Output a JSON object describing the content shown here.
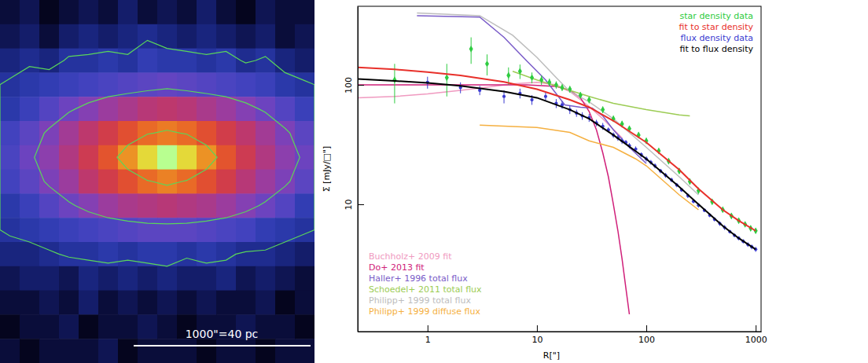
{
  "chart_data": [
    {
      "type": "heatmap",
      "tick_labels": false,
      "cells": [
        [
          1.0,
          1.1,
          0.9,
          1.0,
          1.1,
          1.0,
          1.2,
          1.0,
          1.1,
          1.0,
          1.2,
          1.0,
          0.9,
          1.1,
          1.0,
          1.0
        ],
        [
          1.1,
          1.2,
          1.0,
          1.2,
          1.3,
          1.2,
          1.3,
          1.4,
          1.3,
          1.2,
          1.3,
          1.2,
          1.1,
          1.2,
          1.0,
          1.1
        ],
        [
          1.3,
          1.4,
          1.3,
          1.5,
          1.5,
          1.6,
          1.5,
          1.7,
          1.6,
          1.6,
          1.5,
          1.6,
          1.4,
          1.5,
          1.3,
          1.2
        ],
        [
          1.5,
          1.6,
          1.7,
          1.8,
          1.9,
          2.0,
          2.1,
          2.2,
          2.3,
          2.2,
          2.1,
          2.0,
          1.9,
          1.8,
          1.6,
          1.5
        ],
        [
          1.6,
          1.8,
          2.1,
          2.4,
          2.7,
          3.0,
          3.2,
          3.4,
          3.5,
          3.4,
          3.2,
          3.0,
          2.7,
          2.4,
          2.1,
          1.8
        ],
        [
          1.9,
          2.2,
          2.6,
          3.1,
          3.5,
          3.9,
          4.4,
          4.9,
          5.2,
          4.9,
          4.4,
          3.9,
          3.5,
          3.1,
          2.6,
          2.2
        ],
        [
          2.0,
          2.4,
          2.8,
          3.3,
          3.8,
          4.5,
          5.6,
          7.2,
          10.0,
          7.2,
          5.6,
          4.5,
          3.8,
          3.3,
          2.8,
          2.4
        ],
        [
          1.9,
          2.2,
          2.6,
          3.0,
          3.5,
          3.9,
          4.4,
          4.9,
          5.3,
          4.9,
          4.4,
          3.9,
          3.4,
          3.0,
          2.6,
          2.2
        ],
        [
          1.6,
          1.8,
          2.1,
          2.4,
          2.7,
          3.0,
          3.2,
          3.3,
          3.4,
          3.3,
          3.2,
          3.0,
          2.7,
          2.4,
          2.1,
          1.7
        ],
        [
          1.5,
          1.6,
          1.7,
          1.8,
          1.9,
          2.0,
          2.1,
          2.2,
          2.2,
          2.2,
          2.1,
          2.0,
          1.9,
          1.7,
          1.6,
          1.5
        ],
        [
          1.3,
          1.3,
          1.4,
          1.5,
          1.5,
          1.6,
          1.5,
          1.6,
          1.6,
          1.5,
          1.6,
          1.5,
          1.4,
          1.4,
          1.3,
          1.2
        ],
        [
          1.1,
          1.2,
          1.2,
          1.1,
          1.3,
          1.2,
          1.3,
          1.2,
          1.3,
          1.2,
          1.2,
          1.3,
          1.1,
          1.2,
          1.1,
          1.0
        ],
        [
          1.0,
          1.0,
          1.1,
          1.0,
          1.2,
          1.0,
          1.1,
          1.0,
          1.1,
          1.0,
          1.1,
          1.0,
          1.0,
          1.1,
          0.9,
          1.0
        ],
        [
          0.9,
          1.0,
          1.0,
          1.1,
          0.9,
          1.0,
          1.0,
          1.1,
          1.0,
          0.9,
          1.0,
          1.0,
          1.1,
          1.0,
          1.0,
          0.9
        ],
        [
          1.0,
          0.9,
          1.0,
          1.0,
          1.0,
          1.1,
          0.9,
          1.0,
          1.0,
          1.0,
          0.9,
          1.0,
          1.0,
          0.9,
          1.0,
          1.0
        ]
      ],
      "color_range": [
        0.9,
        10
      ],
      "contour_levels": [
        1.45,
        2.5,
        5
      ],
      "annotation": "1000\"=40 pc"
    },
    {
      "type": "line",
      "log": true,
      "grid": false,
      "x_label": "R[\"]",
      "y_label": "Σ [mJy/□\"]",
      "xlim": [
        0.23,
        1120
      ],
      "ylim": [
        0.86,
        455
      ],
      "xticks": [
        1,
        10,
        100,
        1000
      ],
      "yticks": [
        10,
        100
      ],
      "series": [
        {
          "name": "Buchholz+ 2009 fit",
          "color": "#f09ac0",
          "type": "line",
          "line_style": "solid",
          "legend": "lower left",
          "x": [
            0.23,
            0.5,
            1,
            2,
            4,
            6,
            10,
            15,
            20,
            30,
            40,
            60
          ],
          "values": [
            78,
            80,
            84,
            90,
            97,
            102,
            105,
            100,
            88,
            66,
            52,
            36
          ]
        },
        {
          "name": "Do+ 2013 fit",
          "color": "#d0207a",
          "type": "line",
          "line_style": "solid",
          "legend": "lower left",
          "x": [
            0.23,
            1,
            3,
            8,
            15,
            20,
            25,
            30,
            35,
            40,
            45,
            50,
            55,
            60,
            65,
            70
          ],
          "values": [
            100,
            100,
            100,
            100,
            97,
            90,
            78,
            60,
            42,
            27,
            17,
            10,
            6,
            3.5,
            2,
            1.2
          ]
        },
        {
          "name": "Haller+ 1996 total flux",
          "color": "#7a5cc8",
          "type": "line",
          "line_style": "solid",
          "legend": "lower left",
          "x": [
            0.8,
            3,
            5,
            8,
            12,
            18,
            25,
            32,
            40,
            50,
            70,
            100
          ],
          "values": [
            380,
            370,
            250,
            160,
            110,
            68,
            65,
            64,
            55,
            42,
            30,
            22
          ]
        },
        {
          "name": "Schoedel+ 2011 total flux",
          "color": "#9ccc54",
          "type": "line",
          "line_style": "solid",
          "legend": "lower left",
          "x": [
            6,
            10,
            20,
            30,
            50,
            100,
            200,
            250
          ],
          "values": [
            130,
            110,
            90,
            80,
            70,
            62,
            56,
            55
          ]
        },
        {
          "name": "Philipp+ 1999 total flux",
          "color": "#bdbdbd",
          "type": "line",
          "line_style": "solid",
          "legend": "lower left",
          "x": [
            0.8,
            3,
            6,
            10,
            15,
            20,
            30,
            50,
            100,
            200,
            300
          ],
          "values": [
            400,
            380,
            260,
            170,
            115,
            88,
            72,
            52,
            30,
            17,
            12
          ]
        },
        {
          "name": "Philipp+ 1999 diffuse flux",
          "color": "#f5b041",
          "type": "line",
          "line_style": "solid",
          "legend": "lower left",
          "x": [
            3,
            10,
            20,
            30,
            50,
            80,
            100,
            200,
            300
          ],
          "values": [
            46,
            44,
            40,
            34,
            30,
            24,
            21,
            12,
            9
          ]
        },
        {
          "name": "star density data",
          "color": "#2ecc40",
          "type": "scatter",
          "marker": "diamond",
          "legend": "upper right",
          "x": [
            0.5,
            1.5,
            2.5,
            3.5,
            5.5,
            7,
            9,
            11,
            13,
            15,
            17,
            20,
            25,
            30,
            40,
            50,
            60,
            70,
            85,
            100,
            130,
            160,
            200,
            250,
            300,
            400,
            500,
            600,
            700,
            800,
            900,
            1000
          ],
          "values": [
            110,
            115,
            200,
            150,
            120,
            130,
            115,
            110,
            105,
            100,
            95,
            92,
            82,
            75,
            62,
            52,
            47,
            43,
            38,
            34,
            28,
            23,
            19,
            15.5,
            13,
            10.5,
            9,
            8,
            7.3,
            6.8,
            6.3,
            6
          ],
          "errors": [
            40,
            35,
            50,
            30,
            20,
            18,
            12,
            10,
            8,
            7,
            6,
            6,
            5,
            5,
            4,
            3,
            3,
            2.5,
            2,
            2,
            1.5,
            1.2,
            1,
            0.8,
            0.7,
            0.5,
            0.4,
            0.4,
            0.3,
            0.3,
            0.3,
            0.3
          ]
        },
        {
          "name": "fit to star density",
          "color": "#e8302a",
          "type": "line",
          "line_style": "solid",
          "legend": "upper right",
          "x": [
            0.23,
            0.5,
            1,
            2,
            5,
            10,
            20,
            30,
            50,
            100,
            200,
            300,
            500,
            700,
            1000
          ],
          "values": [
            140,
            135,
            128,
            120,
            106,
            92,
            75,
            65,
            50,
            33,
            19.5,
            13.5,
            9,
            7.3,
            6
          ]
        },
        {
          "name": "flux density data",
          "color": "#3a3ad0",
          "type": "scatter",
          "marker": "circle",
          "legend": "upper right",
          "x": [
            1,
            2,
            3,
            5,
            7,
            9,
            12,
            15,
            17,
            20,
            23,
            26,
            30,
            35,
            40,
            45,
            50,
            55,
            60,
            65,
            70,
            80,
            90,
            100,
            110,
            120,
            135,
            150,
            170,
            190,
            210,
            240,
            270,
            300,
            340,
            380,
            420,
            470,
            520,
            580,
            640,
            700,
            770,
            850,
            920,
            1000
          ],
          "values": [
            105,
            95,
            90,
            80,
            85,
            75,
            80,
            70,
            68,
            62,
            58,
            55,
            53,
            48,
            45,
            42,
            38,
            36,
            34,
            33,
            31,
            29,
            26,
            24,
            22.5,
            21,
            19,
            17.5,
            16,
            14.5,
            13.2,
            11.8,
            10.6,
            9.8,
            8.9,
            8.1,
            7.5,
            6.9,
            6.4,
            5.9,
            5.5,
            5.2,
            4.9,
            4.6,
            4.4,
            4.2
          ],
          "errors": [
            12,
            10,
            8,
            10,
            8,
            7,
            6,
            6,
            5,
            5,
            4,
            4,
            4,
            3,
            3,
            2,
            2,
            2,
            2,
            1.5,
            1.5,
            1.5,
            1.2,
            1.2,
            1,
            1,
            0.8,
            0.8,
            0.7,
            0.6,
            0.5,
            0.5,
            0.4,
            0.4,
            0.3,
            0.3,
            0.3,
            0.3,
            0.3,
            0.2,
            0.2,
            0.2,
            0.2,
            0.2,
            0.2,
            0.2
          ]
        },
        {
          "name": "fit to flux density",
          "color": "#000000",
          "type": "line",
          "line_style": "solid",
          "legend": "upper right",
          "x": [
            0.23,
            0.5,
            1,
            2,
            5,
            10,
            20,
            30,
            50,
            100,
            200,
            300,
            500,
            700,
            1000
          ],
          "values": [
            112,
            108,
            104,
            98,
            88,
            78,
            62,
            52,
            38,
            24,
            14,
            10,
            6.6,
            5.2,
            4.2
          ]
        }
      ]
    }
  ]
}
